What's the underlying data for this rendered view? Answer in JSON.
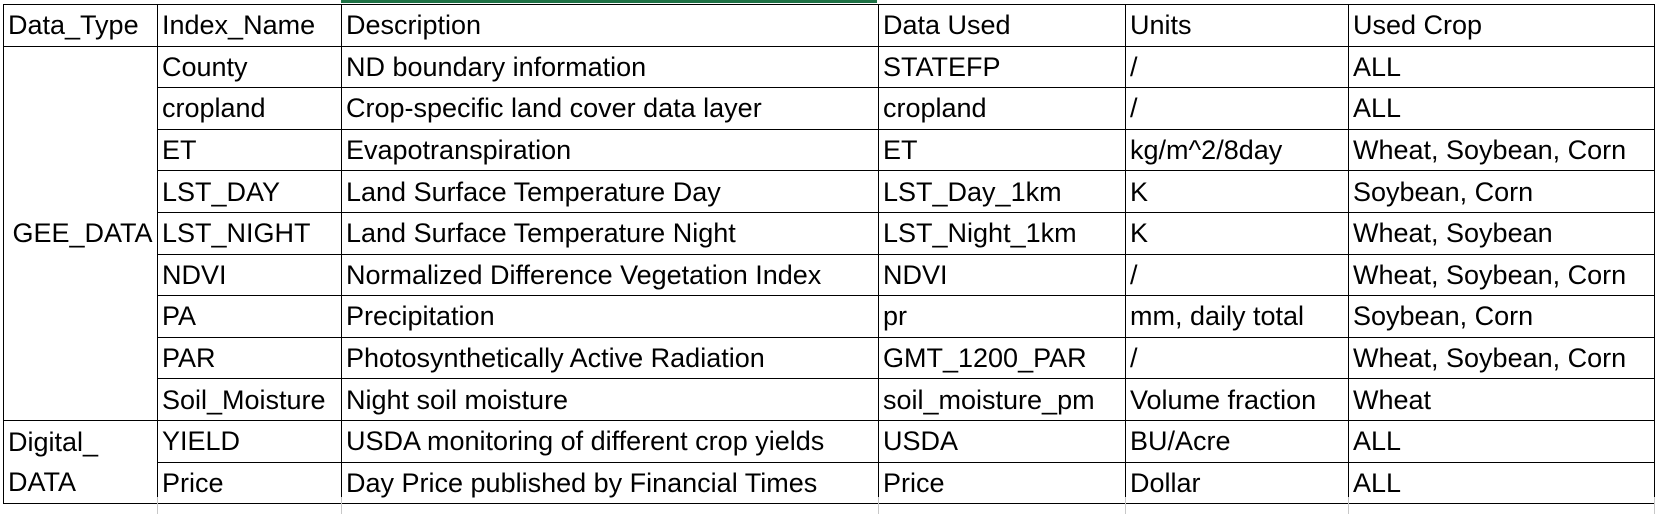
{
  "table": {
    "headers": [
      "Data_Type",
      "Index_Name",
      "Description",
      "Data Used",
      "Units",
      "Used Crop"
    ],
    "groups": [
      {
        "data_type": "GEE_DATA",
        "rows": [
          {
            "index_name": "County",
            "description": "ND boundary information",
            "data_used": "STATEFP",
            "units": "/",
            "used_crop": "ALL"
          },
          {
            "index_name": "cropland",
            "description": "Crop-specific land cover data layer",
            "data_used": "cropland",
            "units": "/",
            "used_crop": "ALL"
          },
          {
            "index_name": "ET",
            "description": "Evapotranspiration",
            "data_used": "ET",
            "units": "kg/m^2/8day",
            "used_crop": "Wheat, Soybean, Corn"
          },
          {
            "index_name": "LST_DAY",
            "description": "Land Surface Temperature Day",
            "data_used": "LST_Day_1km",
            "units": "K",
            "used_crop": "Soybean, Corn"
          },
          {
            "index_name": "LST_NIGHT",
            "description": "Land Surface Temperature Night",
            "data_used": "LST_Night_1km",
            "units": "K",
            "used_crop": "Wheat, Soybean"
          },
          {
            "index_name": "NDVI",
            "description": "Normalized Difference Vegetation Index",
            "data_used": "NDVI",
            "units": "/",
            "used_crop": "Wheat, Soybean, Corn"
          },
          {
            "index_name": "PA",
            "description": "Precipitation",
            "data_used": "pr",
            "units": "mm, daily total",
            "used_crop": "Soybean, Corn"
          },
          {
            "index_name": "PAR",
            "description": "Photosynthetically Active Radiation",
            "data_used": "GMT_1200_PAR",
            "units": "/",
            "used_crop": "Wheat, Soybean, Corn"
          },
          {
            "index_name": "Soil_Moisture",
            "description": "Night soil moisture",
            "data_used": "soil_moisture_pm",
            "units": "Volume fraction",
            "used_crop": "Wheat"
          }
        ]
      },
      {
        "data_type_line1": "Digital_",
        "data_type_line2": "DATA",
        "rows": [
          {
            "index_name": "YIELD",
            "description": "USDA monitoring of different crop yields",
            "data_used": "USDA",
            "units": "BU/Acre",
            "used_crop": "ALL"
          },
          {
            "index_name": "Price",
            "description": "Day Price published by Financial Times",
            "data_used": "Price",
            "units": "Dollar",
            "used_crop": "ALL"
          }
        ]
      }
    ]
  },
  "colors": {
    "selection_accent": "#1e7145",
    "grid": "#000000",
    "background": "#ffffff"
  }
}
